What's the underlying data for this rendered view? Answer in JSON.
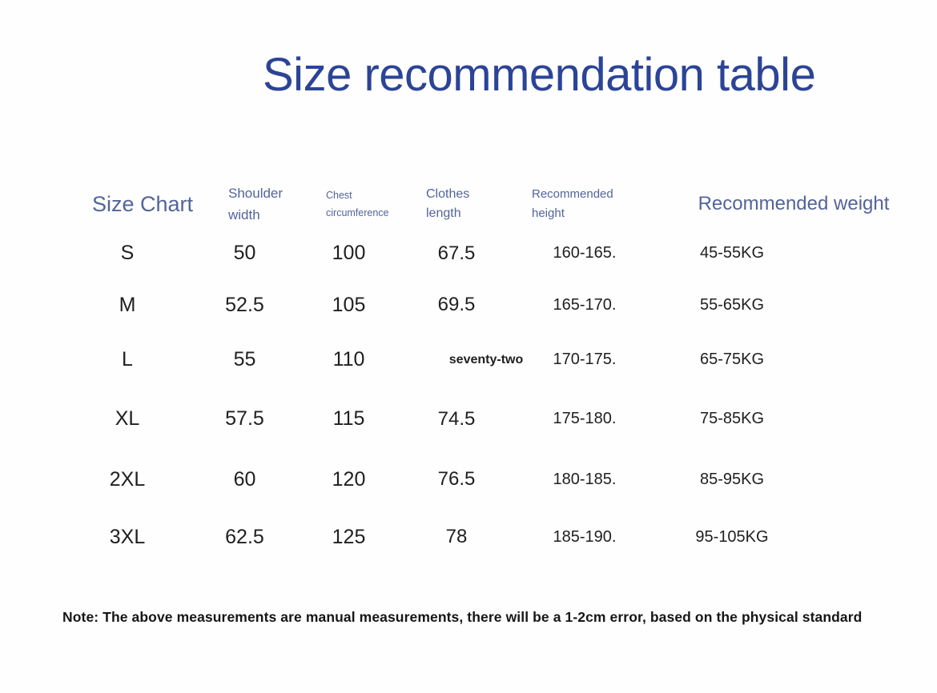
{
  "title": {
    "text": "Size recommendation table"
  },
  "table": {
    "headers": [
      {
        "id": "size_chart",
        "label": "Size Chart"
      },
      {
        "id": "shoulder_width",
        "label": "Shoulder width"
      },
      {
        "id": "chest_circumference",
        "label": "Chest circumference"
      },
      {
        "id": "clothes_length",
        "label": "Clothes length"
      },
      {
        "id": "recommended_height",
        "label": "Recommended height"
      },
      {
        "id": "recommended_weight",
        "label": "Recommended weight"
      }
    ],
    "rows": [
      {
        "size": "S",
        "shoulder_width": "50",
        "chest_circumference": "100",
        "clothes_length": "67.5",
        "recommended_height": "160-165.",
        "recommended_weight": "45-55KG"
      },
      {
        "size": "M",
        "shoulder_width": "52.5",
        "chest_circumference": "105",
        "clothes_length": "69.5",
        "recommended_height": "165-170.",
        "recommended_weight": "55-65KG"
      },
      {
        "size": "L",
        "shoulder_width": "55",
        "chest_circumference": "110",
        "clothes_length": "seventy-two",
        "recommended_height": "170-175.",
        "recommended_weight": "65-75KG"
      },
      {
        "size": "XL",
        "shoulder_width": "57.5",
        "chest_circumference": "115",
        "clothes_length": "74.5",
        "recommended_height": "175-180.",
        "recommended_weight": "75-85KG"
      },
      {
        "size": "2XL",
        "shoulder_width": "60",
        "chest_circumference": "120",
        "clothes_length": "76.5",
        "recommended_height": "180-185.",
        "recommended_weight": "85-95KG"
      },
      {
        "size": "3XL",
        "shoulder_width": "62.5",
        "chest_circumference": "125",
        "clothes_length": "78",
        "recommended_height": "185-190.",
        "recommended_weight": "95-105KG"
      }
    ]
  },
  "note": {
    "text": "Note: The above measurements are manual measurements, there will be a 1-2cm error, based on the physical standard"
  },
  "colors": {
    "title": "#2b4496",
    "header_text": "#53649b",
    "data_text": "#1f1f1f",
    "background": "#fefefe"
  }
}
